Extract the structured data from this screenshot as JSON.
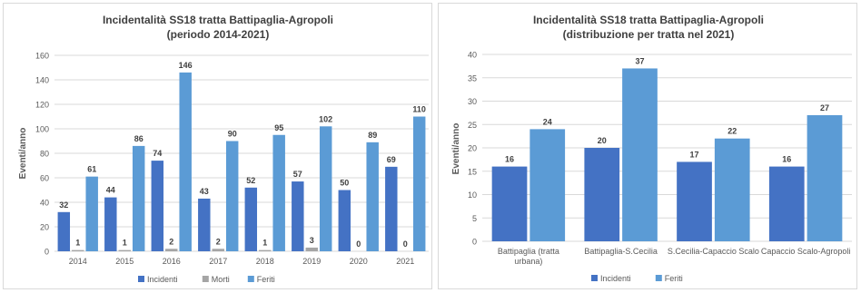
{
  "colors": {
    "incidenti": "#4472c4",
    "morti": "#a5a5a5",
    "feriti": "#5b9bd5",
    "grid": "#d9d9d9",
    "text": "#595959",
    "title": "#404040"
  },
  "chart_data": [
    {
      "type": "bar",
      "title": "Incidentalità SS18 tratta Battipaglia-Agropoli",
      "subtitle": "(periodo 2014-2021)",
      "ylabel": "Eventi/anno",
      "xlabel": "",
      "ylim": [
        0,
        160
      ],
      "yticks": [
        "0",
        "20",
        "40",
        "60",
        "80",
        "100",
        "120",
        "140",
        "160"
      ],
      "grid": true,
      "legend_position": "bottom",
      "categories": [
        "2014",
        "2015",
        "2016",
        "2017",
        "2018",
        "2019",
        "2020",
        "2021"
      ],
      "series": [
        {
          "name": "Incidenti",
          "color": "#4472c4",
          "values": [
            32,
            44,
            74,
            43,
            52,
            57,
            50,
            69
          ]
        },
        {
          "name": "Morti",
          "color": "#a5a5a5",
          "values": [
            1,
            1,
            2,
            2,
            1,
            3,
            0,
            0
          ]
        },
        {
          "name": "Feriti",
          "color": "#5b9bd5",
          "values": [
            61,
            86,
            146,
            90,
            95,
            102,
            89,
            110
          ]
        }
      ]
    },
    {
      "type": "bar",
      "title": "Incidentalità SS18 tratta Battipaglia-Agropoli",
      "subtitle": "(distribuzione per tratta nel 2021)",
      "ylabel": "Eventi/anno",
      "xlabel": "",
      "ylim": [
        0,
        40
      ],
      "yticks": [
        "0",
        "5",
        "10",
        "15",
        "20",
        "25",
        "30",
        "35",
        "40"
      ],
      "grid": true,
      "legend_position": "bottom",
      "categories": [
        [
          "Battipaglia (tratta",
          "urbana)"
        ],
        [
          "Battipaglia-S.Cecilia"
        ],
        [
          "S.Cecilia-Capaccio Scalo"
        ],
        [
          "Capaccio Scalo-Agropoli"
        ]
      ],
      "series": [
        {
          "name": "Incidenti",
          "color": "#4472c4",
          "values": [
            16,
            20,
            17,
            16
          ]
        },
        {
          "name": "Feriti",
          "color": "#5b9bd5",
          "values": [
            24,
            37,
            22,
            27
          ]
        }
      ]
    }
  ]
}
